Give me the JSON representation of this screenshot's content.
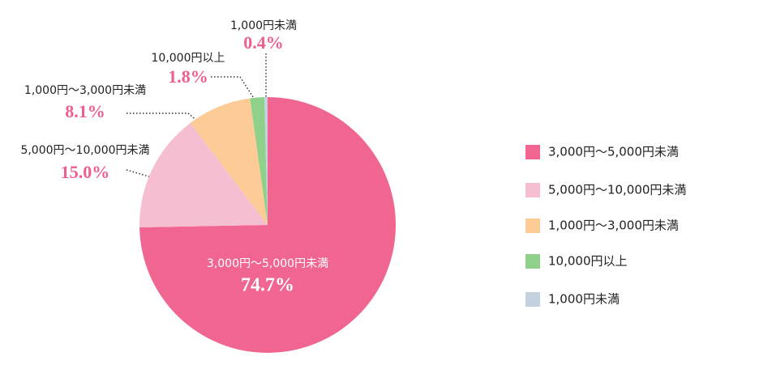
{
  "chart_data": {
    "type": "pie",
    "categories": [
      "3,000円〜5,000円未満",
      "5,000円〜10,000円未満",
      "1,000円〜3,000円未満",
      "10,000円以上",
      "1,000円未満"
    ],
    "values": [
      74.7,
      15.0,
      8.1,
      1.8,
      0.4
    ],
    "value_labels": [
      "74.7%",
      "15.0%",
      "8.1%",
      "1.8%",
      "0.4%"
    ],
    "colors": [
      "#f06690",
      "#f6bfd1",
      "#fccb96",
      "#8fd18a",
      "#c4d2e0"
    ],
    "legend": "right"
  }
}
